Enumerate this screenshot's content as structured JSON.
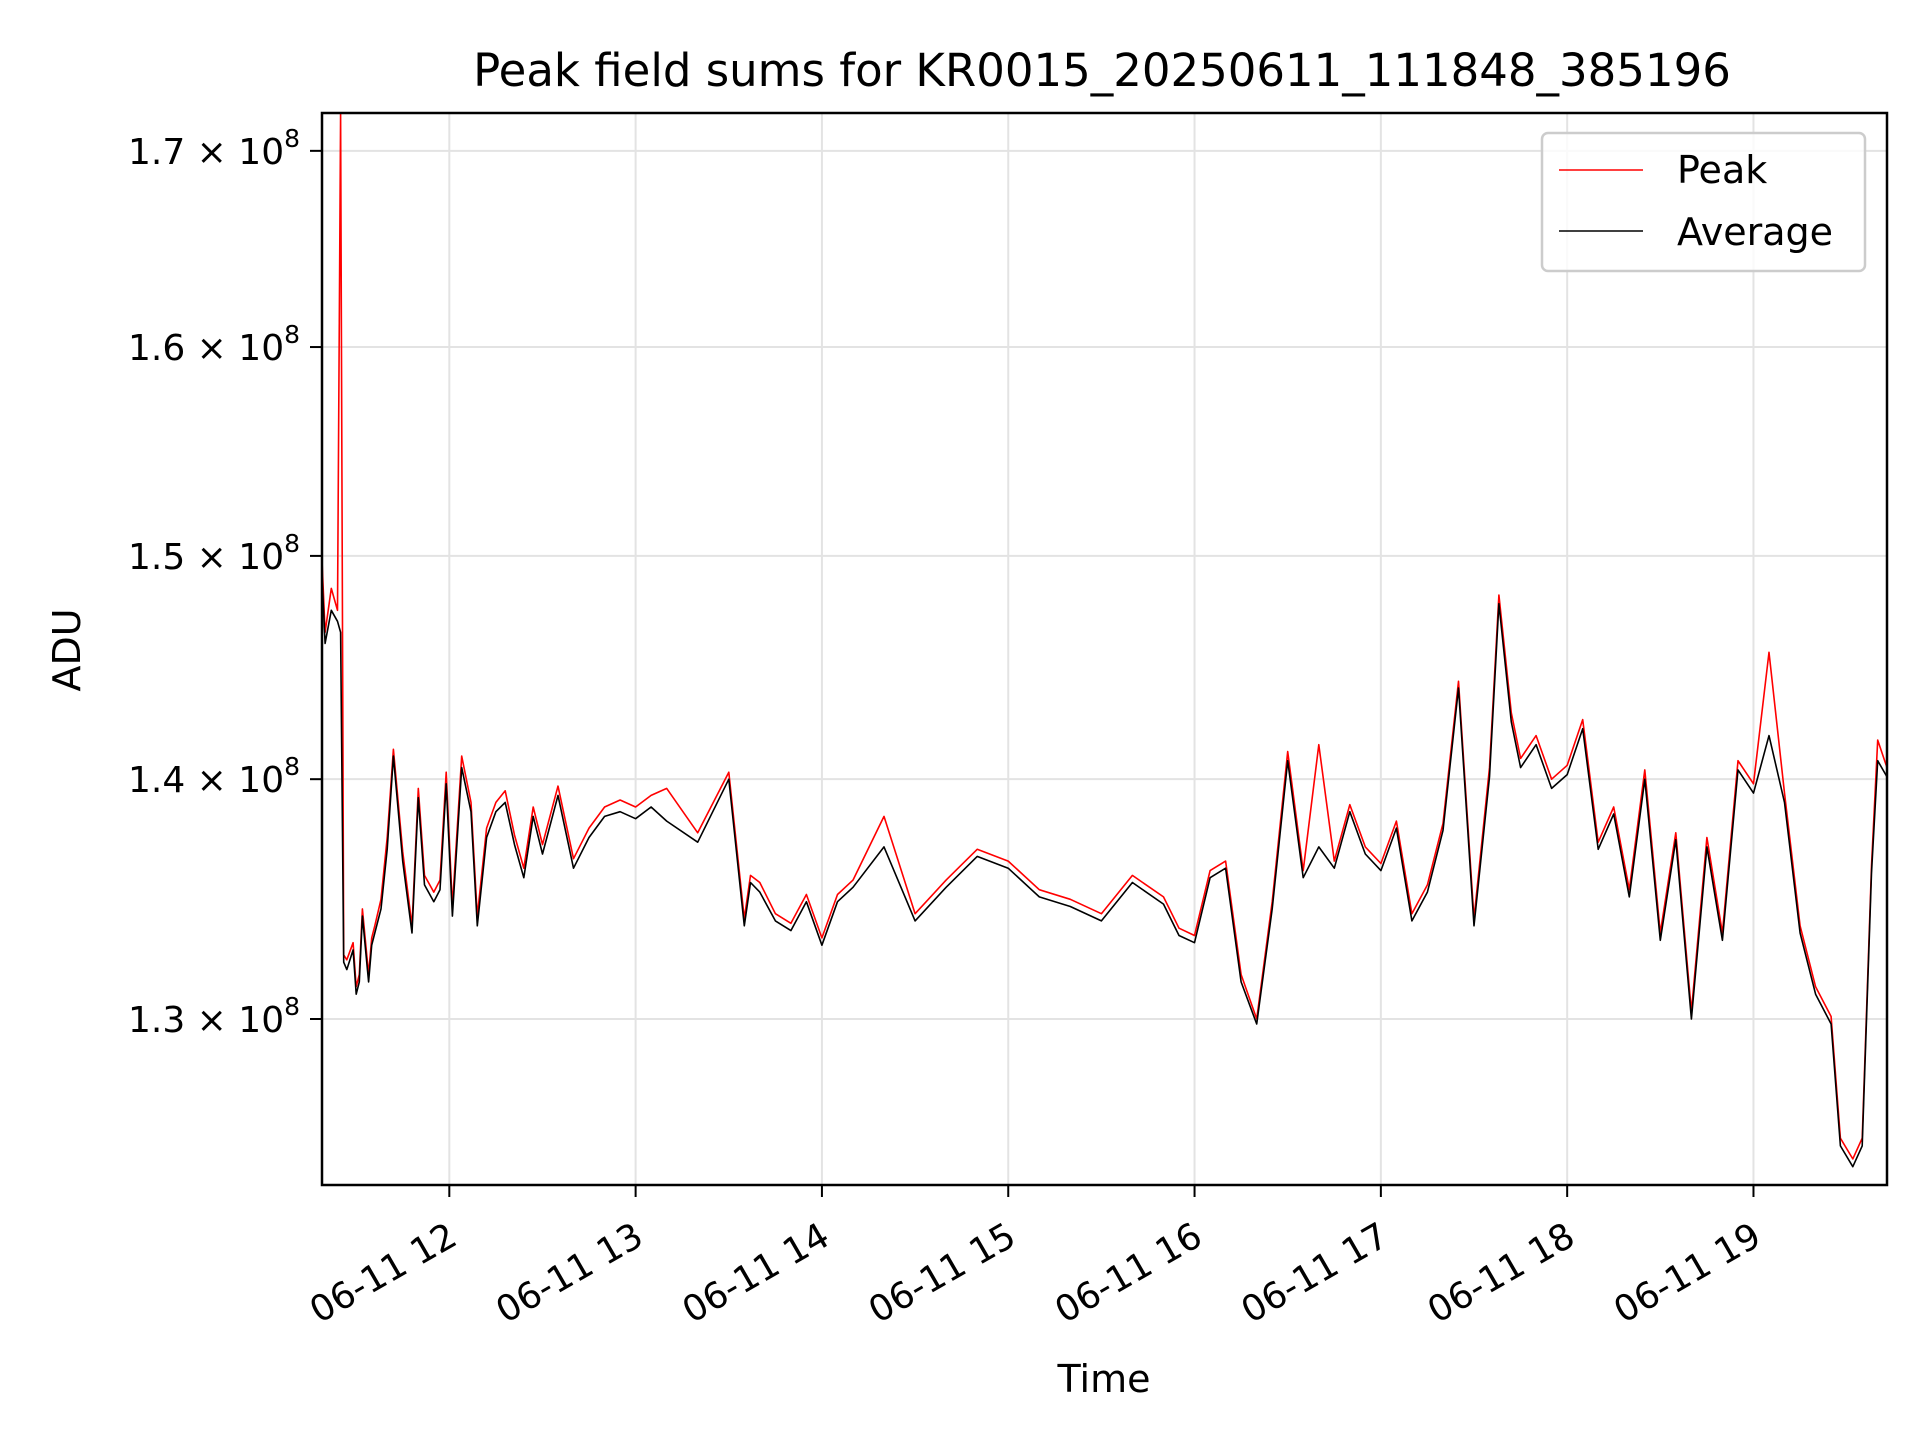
{
  "chart_data": {
    "type": "line",
    "title": "Peak field sums for KR0015_20250611_111848_385196",
    "xlabel": "Time",
    "ylabel": "ADU",
    "y_scale": "log",
    "grid": true,
    "legend_placement": "top-right",
    "x_range": [
      "2025-06-11 11:19",
      "2025-06-11 19:43"
    ],
    "y_range": [
      123500000,
      172000000
    ],
    "x_ticks": [
      {
        "value": "2025-06-11 12:00",
        "label": "06-11 12"
      },
      {
        "value": "2025-06-11 13:00",
        "label": "06-11 13"
      },
      {
        "value": "2025-06-11 14:00",
        "label": "06-11 14"
      },
      {
        "value": "2025-06-11 15:00",
        "label": "06-11 15"
      },
      {
        "value": "2025-06-11 16:00",
        "label": "06-11 16"
      },
      {
        "value": "2025-06-11 17:00",
        "label": "06-11 17"
      },
      {
        "value": "2025-06-11 18:00",
        "label": "06-11 18"
      },
      {
        "value": "2025-06-11 19:00",
        "label": "06-11 19"
      }
    ],
    "y_ticks": [
      {
        "value": 130000000,
        "mantissa": "1.3",
        "exponent": "8"
      },
      {
        "value": 140000000,
        "mantissa": "1.4",
        "exponent": "8"
      },
      {
        "value": 150000000,
        "mantissa": "1.5",
        "exponent": "8"
      },
      {
        "value": 160000000,
        "mantissa": "1.6",
        "exponent": "8"
      },
      {
        "value": 170000000,
        "mantissa": "1.7",
        "exponent": "8"
      }
    ],
    "series": [
      {
        "name": "Average",
        "color": "#000000",
        "x": [
          "2025-06-11 11:19",
          "2025-06-11 11:20",
          "2025-06-11 11:22",
          "2025-06-11 11:24",
          "2025-06-11 11:25",
          "2025-06-11 11:26",
          "2025-06-11 11:27",
          "2025-06-11 11:29",
          "2025-06-11 11:30",
          "2025-06-11 11:31",
          "2025-06-11 11:32",
          "2025-06-11 11:34",
          "2025-06-11 11:35",
          "2025-06-11 11:36",
          "2025-06-11 11:38",
          "2025-06-11 11:40",
          "2025-06-11 11:42",
          "2025-06-11 11:45",
          "2025-06-11 11:48",
          "2025-06-11 11:50",
          "2025-06-11 11:52",
          "2025-06-11 11:55",
          "2025-06-11 11:57",
          "2025-06-11 11:59",
          "2025-06-11 12:01",
          "2025-06-11 12:04",
          "2025-06-11 12:07",
          "2025-06-11 12:09",
          "2025-06-11 12:12",
          "2025-06-11 12:15",
          "2025-06-11 12:18",
          "2025-06-11 12:21",
          "2025-06-11 12:24",
          "2025-06-11 12:27",
          "2025-06-11 12:30",
          "2025-06-11 12:35",
          "2025-06-11 12:40",
          "2025-06-11 12:45",
          "2025-06-11 12:50",
          "2025-06-11 12:55",
          "2025-06-11 13:00",
          "2025-06-11 13:05",
          "2025-06-11 13:10",
          "2025-06-11 13:20",
          "2025-06-11 13:30",
          "2025-06-11 13:35",
          "2025-06-11 13:37",
          "2025-06-11 13:40",
          "2025-06-11 13:45",
          "2025-06-11 13:50",
          "2025-06-11 13:55",
          "2025-06-11 14:00",
          "2025-06-11 14:05",
          "2025-06-11 14:10",
          "2025-06-11 14:20",
          "2025-06-11 14:30",
          "2025-06-11 14:40",
          "2025-06-11 14:50",
          "2025-06-11 15:00",
          "2025-06-11 15:10",
          "2025-06-11 15:20",
          "2025-06-11 15:30",
          "2025-06-11 15:40",
          "2025-06-11 15:50",
          "2025-06-11 15:55",
          "2025-06-11 16:00",
          "2025-06-11 16:05",
          "2025-06-11 16:10",
          "2025-06-11 16:15",
          "2025-06-11 16:20",
          "2025-06-11 16:25",
          "2025-06-11 16:30",
          "2025-06-11 16:35",
          "2025-06-11 16:40",
          "2025-06-11 16:45",
          "2025-06-11 16:50",
          "2025-06-11 16:55",
          "2025-06-11 17:00",
          "2025-06-11 17:05",
          "2025-06-11 17:10",
          "2025-06-11 17:15",
          "2025-06-11 17:20",
          "2025-06-11 17:25",
          "2025-06-11 17:30",
          "2025-06-11 17:35",
          "2025-06-11 17:38",
          "2025-06-11 17:42",
          "2025-06-11 17:45",
          "2025-06-11 17:50",
          "2025-06-11 17:55",
          "2025-06-11 18:00",
          "2025-06-11 18:05",
          "2025-06-11 18:10",
          "2025-06-11 18:15",
          "2025-06-11 18:20",
          "2025-06-11 18:25",
          "2025-06-11 18:30",
          "2025-06-11 18:35",
          "2025-06-11 18:40",
          "2025-06-11 18:45",
          "2025-06-11 18:50",
          "2025-06-11 18:55",
          "2025-06-11 19:00",
          "2025-06-11 19:05",
          "2025-06-11 19:10",
          "2025-06-11 19:15",
          "2025-06-11 19:20",
          "2025-06-11 19:25",
          "2025-06-11 19:28",
          "2025-06-11 19:32",
          "2025-06-11 19:35",
          "2025-06-11 19:38",
          "2025-06-11 19:40",
          "2025-06-11 19:43"
        ],
        "values": [
          149000000,
          146000000,
          147500000,
          147000000,
          146500000,
          132300000,
          132000000,
          132800000,
          131000000,
          131500000,
          134200000,
          131500000,
          133000000,
          133500000,
          134500000,
          137000000,
          141000000,
          136500000,
          133500000,
          139200000,
          135500000,
          134800000,
          135300000,
          139800000,
          134200000,
          140500000,
          138600000,
          133800000,
          137500000,
          138600000,
          139000000,
          137200000,
          135800000,
          138400000,
          136800000,
          139300000,
          136200000,
          137500000,
          138400000,
          138600000,
          138300000,
          138800000,
          138200000,
          137300000,
          140000000,
          133800000,
          135600000,
          135200000,
          134000000,
          133600000,
          134800000,
          133000000,
          134800000,
          135400000,
          137100000,
          134000000,
          135400000,
          136700000,
          136200000,
          135000000,
          134600000,
          134000000,
          135600000,
          134700000,
          133400000,
          133100000,
          135800000,
          136200000,
          131500000,
          129800000,
          134500000,
          140800000,
          135800000,
          137100000,
          136200000,
          138600000,
          136800000,
          136100000,
          137900000,
          134000000,
          135200000,
          137800000,
          144000000,
          133800000,
          140100000,
          147800000,
          142500000,
          140500000,
          141500000,
          139600000,
          140200000,
          142200000,
          137000000,
          138500000,
          135000000,
          140000000,
          133200000,
          137400000,
          130000000,
          137100000,
          133200000,
          140400000,
          139400000,
          141900000,
          139000000,
          133500000,
          131000000,
          129800000,
          125000000,
          124200000,
          125000000,
          136000000,
          140800000,
          140100000
        ]
      },
      {
        "name": "Peak",
        "color": "#ff0000",
        "x": [
          "2025-06-11 11:19",
          "2025-06-11 11:20",
          "2025-06-11 11:22",
          "2025-06-11 11:24",
          "2025-06-11 11:25",
          "2025-06-11 11:26",
          "2025-06-11 11:27",
          "2025-06-11 11:29",
          "2025-06-11 11:30",
          "2025-06-11 11:31",
          "2025-06-11 11:32",
          "2025-06-11 11:34",
          "2025-06-11 11:35",
          "2025-06-11 11:36",
          "2025-06-11 11:38",
          "2025-06-11 11:40",
          "2025-06-11 11:42",
          "2025-06-11 11:45",
          "2025-06-11 11:48",
          "2025-06-11 11:50",
          "2025-06-11 11:52",
          "2025-06-11 11:55",
          "2025-06-11 11:57",
          "2025-06-11 11:59",
          "2025-06-11 12:01",
          "2025-06-11 12:04",
          "2025-06-11 12:07",
          "2025-06-11 12:09",
          "2025-06-11 12:12",
          "2025-06-11 12:15",
          "2025-06-11 12:18",
          "2025-06-11 12:21",
          "2025-06-11 12:24",
          "2025-06-11 12:27",
          "2025-06-11 12:30",
          "2025-06-11 12:35",
          "2025-06-11 12:40",
          "2025-06-11 12:45",
          "2025-06-11 12:50",
          "2025-06-11 12:55",
          "2025-06-11 13:00",
          "2025-06-11 13:05",
          "2025-06-11 13:10",
          "2025-06-11 13:20",
          "2025-06-11 13:30",
          "2025-06-11 13:35",
          "2025-06-11 13:37",
          "2025-06-11 13:40",
          "2025-06-11 13:45",
          "2025-06-11 13:50",
          "2025-06-11 13:55",
          "2025-06-11 14:00",
          "2025-06-11 14:05",
          "2025-06-11 14:10",
          "2025-06-11 14:20",
          "2025-06-11 14:30",
          "2025-06-11 14:40",
          "2025-06-11 14:50",
          "2025-06-11 15:00",
          "2025-06-11 15:10",
          "2025-06-11 15:20",
          "2025-06-11 15:30",
          "2025-06-11 15:40",
          "2025-06-11 15:50",
          "2025-06-11 15:55",
          "2025-06-11 16:00",
          "2025-06-11 16:05",
          "2025-06-11 16:10",
          "2025-06-11 16:15",
          "2025-06-11 16:20",
          "2025-06-11 16:25",
          "2025-06-11 16:30",
          "2025-06-11 16:35",
          "2025-06-11 16:40",
          "2025-06-11 16:45",
          "2025-06-11 16:50",
          "2025-06-11 16:55",
          "2025-06-11 17:00",
          "2025-06-11 17:05",
          "2025-06-11 17:10",
          "2025-06-11 17:15",
          "2025-06-11 17:20",
          "2025-06-11 17:25",
          "2025-06-11 17:30",
          "2025-06-11 17:35",
          "2025-06-11 17:38",
          "2025-06-11 17:42",
          "2025-06-11 17:45",
          "2025-06-11 17:50",
          "2025-06-11 17:55",
          "2025-06-11 18:00",
          "2025-06-11 18:05",
          "2025-06-11 18:10",
          "2025-06-11 18:15",
          "2025-06-11 18:20",
          "2025-06-11 18:25",
          "2025-06-11 18:30",
          "2025-06-11 18:35",
          "2025-06-11 18:40",
          "2025-06-11 18:45",
          "2025-06-11 18:50",
          "2025-06-11 18:55",
          "2025-06-11 19:00",
          "2025-06-11 19:05",
          "2025-06-11 19:10",
          "2025-06-11 19:15",
          "2025-06-11 19:20",
          "2025-06-11 19:25",
          "2025-06-11 19:28",
          "2025-06-11 19:32",
          "2025-06-11 19:35",
          "2025-06-11 19:38",
          "2025-06-11 19:40",
          "2025-06-11 19:43"
        ],
        "values": [
          149800000,
          146500000,
          148500000,
          147500000,
          172000000,
          132600000,
          132400000,
          133100000,
          131300000,
          131800000,
          134500000,
          131800000,
          133300000,
          133800000,
          134900000,
          137500000,
          141300000,
          136900000,
          133800000,
          139600000,
          135900000,
          135200000,
          135700000,
          140300000,
          134600000,
          141000000,
          139000000,
          134200000,
          137900000,
          139000000,
          139500000,
          137600000,
          136200000,
          138800000,
          137200000,
          139700000,
          136600000,
          137900000,
          138800000,
          139100000,
          138800000,
          139300000,
          139600000,
          137700000,
          140300000,
          134100000,
          135900000,
          135600000,
          134300000,
          133900000,
          135100000,
          133300000,
          135100000,
          135700000,
          138400000,
          134300000,
          135700000,
          137000000,
          136500000,
          135300000,
          134900000,
          134300000,
          135900000,
          135000000,
          133700000,
          133400000,
          136100000,
          136500000,
          131800000,
          130000000,
          134800000,
          141200000,
          136100000,
          141500000,
          136500000,
          138900000,
          137100000,
          136400000,
          138200000,
          134300000,
          135500000,
          138100000,
          144300000,
          134100000,
          140500000,
          148200000,
          142900000,
          140900000,
          141900000,
          140000000,
          140600000,
          142600000,
          137300000,
          138800000,
          135300000,
          140400000,
          133500000,
          137700000,
          130300000,
          137500000,
          133500000,
          140800000,
          139800000,
          145600000,
          139400000,
          133800000,
          131300000,
          130100000,
          125300000,
          124500000,
          125300000,
          136300000,
          141700000,
          140500000
        ]
      }
    ]
  }
}
